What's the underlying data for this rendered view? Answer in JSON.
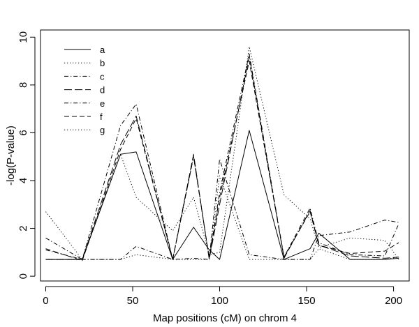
{
  "chart_data": {
    "type": "line",
    "title": "",
    "xlabel": "Map positions (cM) on chrom 4",
    "ylabel": "-log(P-value)",
    "xlim": [
      -3,
      209
    ],
    "ylim": [
      -0.2,
      10.3
    ],
    "xticks": [
      "0",
      "50",
      "100",
      "150",
      "200"
    ],
    "yticks": [
      "0",
      "2",
      "4",
      "6",
      "8",
      "10"
    ],
    "grid": false,
    "legend_position": "top-left",
    "series": [
      {
        "name": "a",
        "dash": "solid",
        "x": [
          0,
          21,
          43,
          52,
          73,
          85,
          94,
          100,
          117,
          137,
          152,
          157,
          175,
          195,
          203
        ],
        "y": [
          0.7,
          0.7,
          5.1,
          5.2,
          0.7,
          2.05,
          1.1,
          0.7,
          6.1,
          0.7,
          1.15,
          1.8,
          0.7,
          0.7,
          0.75
        ]
      },
      {
        "name": "b",
        "dash": "dot",
        "x": [
          0,
          21,
          43,
          52,
          73,
          85,
          94,
          100,
          117,
          137,
          152,
          157,
          175,
          195,
          203
        ],
        "y": [
          2.7,
          0.7,
          5.1,
          3.3,
          1.9,
          3.3,
          0.9,
          1.0,
          9.6,
          3.4,
          2.4,
          1.2,
          1.6,
          1.5,
          0.7
        ]
      },
      {
        "name": "c",
        "dash": "dashdot",
        "x": [
          0,
          21,
          43,
          52,
          73,
          85,
          94,
          100,
          117,
          137,
          152,
          157,
          175,
          195,
          203
        ],
        "y": [
          1.1,
          0.7,
          0.7,
          1.25,
          0.7,
          0.75,
          0.7,
          4.9,
          0.9,
          0.7,
          0.7,
          1.7,
          1.85,
          2.35,
          2.25
        ]
      },
      {
        "name": "d",
        "dash": "longdash",
        "x": [
          0,
          21,
          43,
          52,
          73,
          85,
          94,
          100,
          117,
          137,
          152,
          157,
          175,
          195,
          203
        ],
        "y": [
          0.7,
          0.7,
          5.5,
          6.7,
          0.7,
          5.1,
          0.7,
          3.0,
          9.2,
          0.75,
          2.75,
          1.3,
          0.85,
          0.75,
          0.8
        ]
      },
      {
        "name": "e",
        "dash": "dashdot",
        "x": [
          0,
          21,
          43,
          52,
          73,
          85,
          94,
          100,
          117,
          137,
          152,
          157,
          175,
          195,
          203
        ],
        "y": [
          1.6,
          0.7,
          6.3,
          7.2,
          0.7,
          5.0,
          0.75,
          3.5,
          9.3,
          0.8,
          2.85,
          1.4,
          0.9,
          0.85,
          2.2
        ]
      },
      {
        "name": "f",
        "dash": "dash",
        "x": [
          0,
          21,
          43,
          52,
          73,
          85,
          94,
          100,
          117,
          137,
          152,
          157,
          175,
          195,
          203
        ],
        "y": [
          1.15,
          0.65,
          5.3,
          6.6,
          0.7,
          5.0,
          0.75,
          3.3,
          9.0,
          0.8,
          2.7,
          1.3,
          0.95,
          1.05,
          1.4
        ]
      },
      {
        "name": "g",
        "dash": "dot",
        "x": [
          0,
          21,
          43,
          52,
          73,
          85,
          94,
          100,
          117,
          137,
          152,
          157,
          175,
          195,
          203
        ],
        "y": [
          0.7,
          0.7,
          0.7,
          0.9,
          0.7,
          0.7,
          0.7,
          4.2,
          0.7,
          0.7,
          0.7,
          1.15,
          0.7,
          0.7,
          0.8
        ]
      }
    ]
  }
}
